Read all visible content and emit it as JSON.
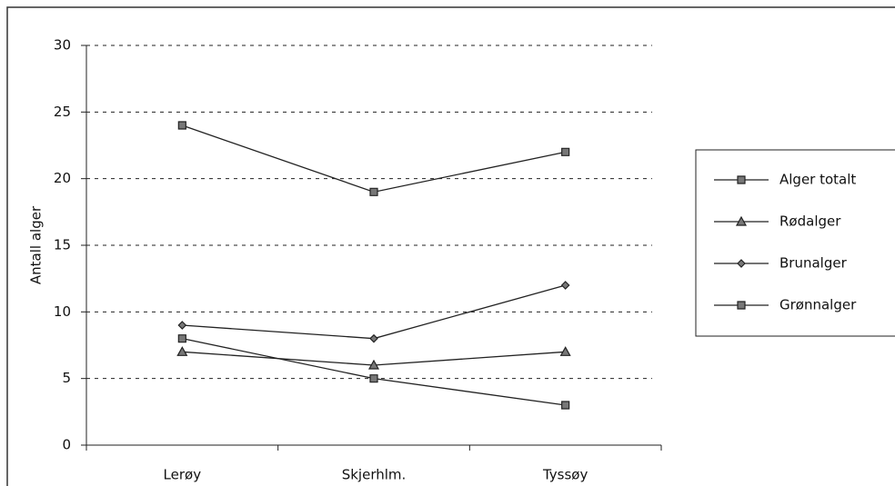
{
  "chart_data": {
    "type": "line",
    "y_label": "Antall alger",
    "categories": [
      "Lerøy",
      "Skjerhlm.",
      "Tyssøy"
    ],
    "series": [
      {
        "name": "Alger totalt",
        "color": "#222222",
        "marker": "square",
        "values": [
          24,
          19,
          22
        ]
      },
      {
        "name": "Rødalger",
        "color": "#222222",
        "marker": "triangle",
        "values": [
          7,
          6,
          7
        ]
      },
      {
        "name": "Brunalger",
        "color": "#222222",
        "marker": "diamond",
        "values": [
          9,
          8,
          12
        ]
      },
      {
        "name": "Grønnalger",
        "color": "#222222",
        "marker": "square",
        "values": [
          8,
          5,
          3
        ]
      }
    ],
    "ylim": [
      0,
      30
    ],
    "yticks": [
      0,
      5,
      10,
      15,
      20,
      25,
      30
    ],
    "grid": true,
    "legend": "right"
  }
}
